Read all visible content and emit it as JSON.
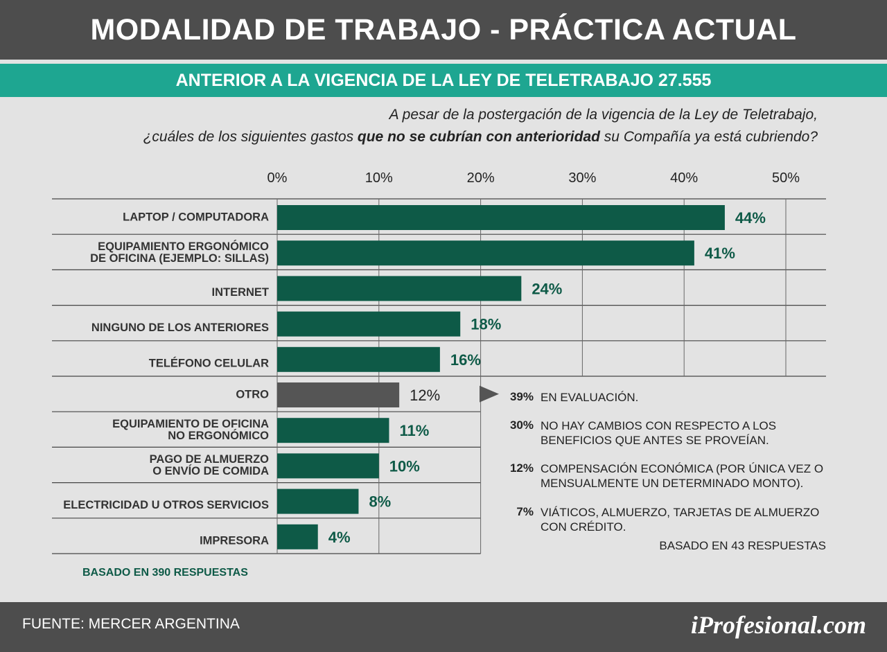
{
  "header": {
    "title": "MODALIDAD DE TRABAJO - PRÁCTICA ACTUAL"
  },
  "subheader": {
    "text": "ANTERIOR A LA VIGENCIA DE LA LEY DE TELETRABAJO 27.555"
  },
  "question": {
    "line1": "A pesar de la postergación de la vigencia de la Ley de Teletrabajo,",
    "line2_pre": "¿cuáles de los siguientes gastos ",
    "line2_bold": "que no se cubrían con anterioridad",
    "line2_post": " su Compañía ya está cubriendo?"
  },
  "colors": {
    "bar": "#0e5a47",
    "bar_other": "#555555",
    "label_green": "#0e5a47",
    "accent": "#1ea691"
  },
  "chart_data": {
    "type": "bar",
    "orientation": "horizontal",
    "xlim": [
      0,
      50
    ],
    "ticks": [
      0,
      10,
      20,
      30,
      40,
      50
    ],
    "tick_labels": [
      "0%",
      "10%",
      "20%",
      "30%",
      "40%",
      "50%"
    ],
    "categories": [
      [
        "LAPTOP / COMPUTADORA"
      ],
      [
        "EQUIPAMIENTO ERGONÓMICO",
        "DE OFICINA (EJEMPLO: SILLAS)"
      ],
      [
        "INTERNET"
      ],
      [
        "NINGUNO DE LOS ANTERIORES"
      ],
      [
        "TELÉFONO CELULAR"
      ],
      [
        "OTRO"
      ],
      [
        "EQUIPAMIENTO DE OFICINA",
        "NO ERGONÓMICO"
      ],
      [
        "PAGO DE ALMUERZO",
        "O ENVÍO DE COMIDA"
      ],
      [
        "ELECTRICIDAD U OTROS SERVICIOS"
      ],
      [
        "IMPRESORA"
      ]
    ],
    "values": [
      44,
      41,
      24,
      18,
      16,
      12,
      11,
      10,
      8,
      4
    ],
    "value_labels": [
      "44%",
      "41%",
      "24%",
      "18%",
      "16%",
      "12%",
      "11%",
      "10%",
      "8%",
      "4%"
    ],
    "highlight_index": 5,
    "grid": true
  },
  "otro_breakdown": {
    "items": [
      {
        "pct": "39%",
        "text": "EN EVALUACIÓN."
      },
      {
        "pct": "30%",
        "text": "NO HAY CAMBIOS CON RESPECTO A LOS BENEFICIOS QUE ANTES SE PROVEÍAN."
      },
      {
        "pct": "12%",
        "text": "COMPENSACIÓN ECONÓMICA (POR ÚNICA VEZ O MENSUALMENTE UN DETERMINADO MONTO)."
      },
      {
        "pct": "7%",
        "text": "VIÁTICOS, ALMUERZO, TARJETAS DE ALMUERZO CON CRÉDITO."
      }
    ],
    "note": "BASADO EN 43 RESPUESTAS"
  },
  "basis_main": "BASADO EN 390 RESPUESTAS",
  "footer": {
    "source": "FUENTE:  MERCER ARGENTINA",
    "logo": "iProfesional.com"
  }
}
